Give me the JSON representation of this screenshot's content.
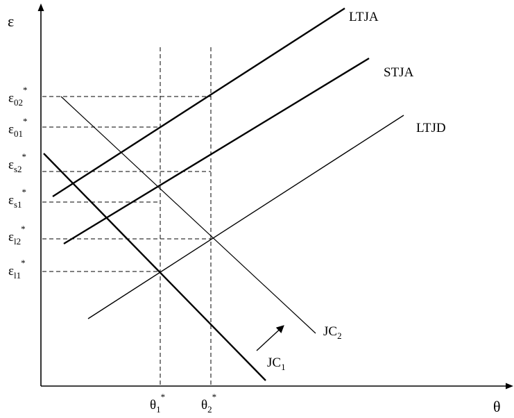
{
  "axes": {
    "y_label": "ε",
    "x_label": "θ"
  },
  "curves": {
    "ltja": "LTJA",
    "stja": "STJA",
    "ltjd": "LTJD",
    "jc2_base": "JC",
    "jc2_sub": "2",
    "jc1_base": "JC",
    "jc1_sub": "1"
  },
  "y_ticks": [
    {
      "base": "ε",
      "sub": "02",
      "sup": "*"
    },
    {
      "base": "ε",
      "sub": "01",
      "sup": "*"
    },
    {
      "base": "ε",
      "sub": "s2",
      "sup": "*"
    },
    {
      "base": "ε",
      "sub": "s1",
      "sup": "*"
    },
    {
      "base": "ε",
      "sub": "l2",
      "sup": "*"
    },
    {
      "base": "ε",
      "sub": "l1",
      "sup": "*"
    }
  ],
  "x_ticks": [
    {
      "base": "θ",
      "sub": "1",
      "sup": "*"
    },
    {
      "base": "θ",
      "sub": "2",
      "sup": "*"
    }
  ]
}
